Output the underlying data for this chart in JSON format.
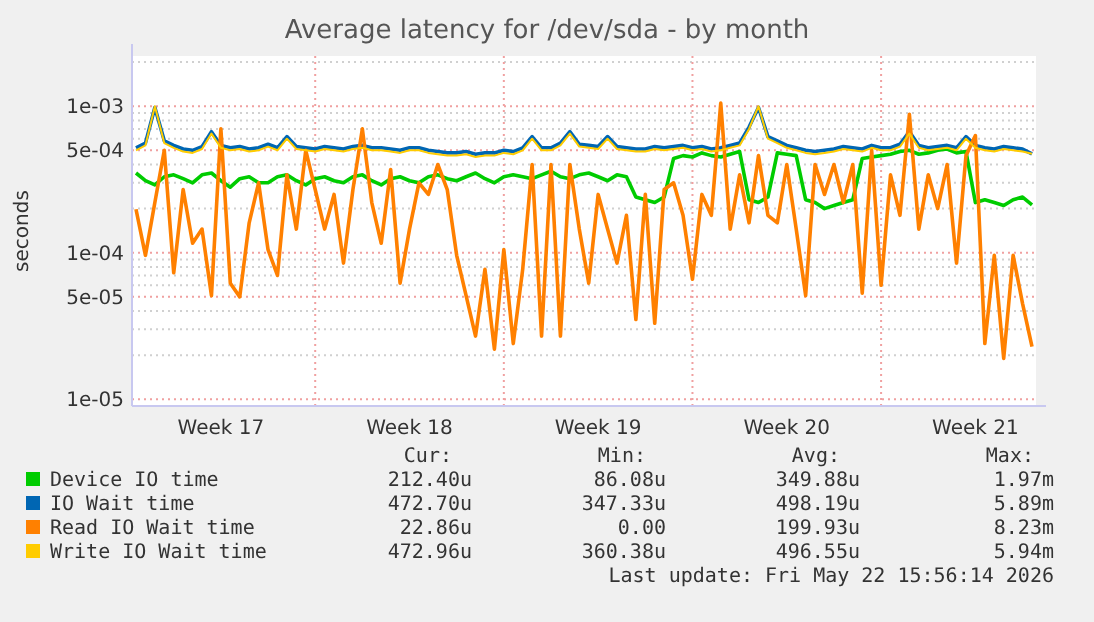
{
  "chart_data": {
    "type": "line",
    "title": "Average latency for /dev/sda - by month",
    "ylabel": "seconds",
    "log": "y",
    "grid": true,
    "legend": "bottom",
    "marker": "none",
    "line_style": "solid",
    "ylim": [
      9e-06,
      0.0022
    ],
    "yticks": [
      {
        "value": 1e-05,
        "label": "1e-05"
      },
      {
        "value": 2e-05,
        "label": null
      },
      {
        "value": 3e-05,
        "label": null
      },
      {
        "value": 4e-05,
        "label": null
      },
      {
        "value": 5e-05,
        "label": "5e-05"
      },
      {
        "value": 6e-05,
        "label": null
      },
      {
        "value": 7e-05,
        "label": null
      },
      {
        "value": 8e-05,
        "label": null
      },
      {
        "value": 9e-05,
        "label": null
      },
      {
        "value": 0.0001,
        "label": "1e-04"
      },
      {
        "value": 0.0002,
        "label": null
      },
      {
        "value": 0.0003,
        "label": null
      },
      {
        "value": 0.0004,
        "label": null
      },
      {
        "value": 0.0005,
        "label": "5e-04"
      },
      {
        "value": 0.0006,
        "label": null
      },
      {
        "value": 0.0007,
        "label": null
      },
      {
        "value": 0.0008,
        "label": null
      },
      {
        "value": 0.0009,
        "label": null
      },
      {
        "value": 0.001,
        "label": "1e-03"
      },
      {
        "value": 0.002,
        "label": null
      }
    ],
    "categories": [
      null,
      null,
      null,
      null,
      null,
      null,
      null,
      null,
      null,
      "Week 17",
      null,
      null,
      null,
      null,
      null,
      null,
      null,
      null,
      null,
      null,
      null,
      null,
      null,
      null,
      null,
      null,
      null,
      null,
      null,
      "Week 18",
      null,
      null,
      null,
      null,
      null,
      null,
      null,
      null,
      null,
      null,
      null,
      null,
      null,
      null,
      null,
      null,
      null,
      null,
      null,
      "Week 19",
      null,
      null,
      null,
      null,
      null,
      null,
      null,
      null,
      null,
      null,
      null,
      null,
      null,
      null,
      null,
      null,
      null,
      null,
      null,
      "Week 20",
      null,
      null,
      null,
      null,
      null,
      null,
      null,
      null,
      null,
      null,
      null,
      null,
      null,
      null,
      null,
      null,
      null,
      null,
      null,
      "Week 21",
      null,
      null,
      null,
      null,
      null,
      null
    ],
    "series": [
      {
        "name": "Device IO time",
        "color": "#00cc00",
        "values": [
          0.00035,
          0.00031,
          0.00029,
          0.00033,
          0.00034,
          0.00032,
          0.0003,
          0.00034,
          0.00035,
          0.00031,
          0.00028,
          0.00032,
          0.00033,
          0.0003,
          0.0003,
          0.00033,
          0.00034,
          0.00031,
          0.00029,
          0.00032,
          0.00033,
          0.00031,
          0.0003,
          0.00033,
          0.00034,
          0.00031,
          0.00029,
          0.00032,
          0.00033,
          0.00031,
          0.0003,
          0.00033,
          0.00034,
          0.00032,
          0.00031,
          0.00033,
          0.00035,
          0.00032,
          0.0003,
          0.00033,
          0.00034,
          0.00033,
          0.00032,
          0.00034,
          0.00036,
          0.00033,
          0.00032,
          0.00034,
          0.00035,
          0.00033,
          0.00031,
          0.00034,
          0.00033,
          0.00024,
          0.00023,
          0.00022,
          0.00024,
          0.00044,
          0.00046,
          0.00045,
          0.00048,
          0.00046,
          0.00045,
          0.00047,
          0.00049,
          0.00023,
          0.00022,
          0.00024,
          0.00048,
          0.00047,
          0.00046,
          0.00023,
          0.00022,
          0.0002,
          0.00021,
          0.00022,
          0.00023,
          0.00044,
          0.00045,
          0.00046,
          0.00047,
          0.00049,
          0.0005,
          0.00047,
          0.00048,
          0.0005,
          0.00051,
          0.00048,
          0.00049,
          0.00022,
          0.00023,
          0.00022,
          0.00021,
          0.00023,
          0.00024,
          0.0002124
        ]
      },
      {
        "name": "IO Wait time",
        "color": "#0066b3",
        "values": [
          0.00052,
          0.00056,
          0.00098,
          0.00058,
          0.00054,
          0.00051,
          0.0005,
          0.00053,
          0.00067,
          0.00054,
          0.00052,
          0.00053,
          0.00051,
          0.00052,
          0.00055,
          0.00052,
          0.00062,
          0.00053,
          0.00052,
          0.00051,
          0.00053,
          0.00052,
          0.00051,
          0.00053,
          0.00054,
          0.00052,
          0.00052,
          0.00051,
          0.0005,
          0.00052,
          0.00052,
          0.0005,
          0.00049,
          0.00048,
          0.00048,
          0.00049,
          0.00047,
          0.00048,
          0.00048,
          0.0005,
          0.00049,
          0.00052,
          0.00062,
          0.00052,
          0.00052,
          0.00056,
          0.00067,
          0.00055,
          0.00054,
          0.00053,
          0.00062,
          0.00053,
          0.00052,
          0.00051,
          0.00051,
          0.00053,
          0.00052,
          0.00053,
          0.00054,
          0.00052,
          0.00053,
          0.00051,
          0.00052,
          0.00054,
          0.00056,
          0.00072,
          0.00098,
          0.00062,
          0.00058,
          0.00054,
          0.00052,
          0.0005,
          0.00049,
          0.0005,
          0.00051,
          0.00053,
          0.00052,
          0.00051,
          0.00054,
          0.00052,
          0.00052,
          0.00055,
          0.00067,
          0.00054,
          0.00052,
          0.00053,
          0.00054,
          0.00052,
          0.00062,
          0.00054,
          0.00052,
          0.00051,
          0.00053,
          0.00052,
          0.00051,
          0.0004727
        ]
      },
      {
        "name": "Read IO Wait time",
        "color": "#ff8000",
        "values": [
          0.000198,
          9.6e-05,
          0.00022,
          0.0005,
          7.3e-05,
          0.00027,
          0.000116,
          0.000145,
          5.1e-05,
          0.0007,
          6.2e-05,
          5e-05,
          0.00016,
          0.0003,
          0.000105,
          7e-05,
          0.00034,
          0.000145,
          0.0005,
          0.00027,
          0.000145,
          0.00025,
          8.5e-05,
          0.00027,
          0.0007,
          0.00022,
          0.000116,
          0.00037,
          6.2e-05,
          0.000145,
          0.0003,
          0.00025,
          0.0004,
          0.00027,
          9.6e-05,
          5.1e-05,
          2.7e-05,
          7.7e-05,
          2.2e-05,
          0.000105,
          2.4e-05,
          7.7e-05,
          0.0004,
          2.7e-05,
          0.0004,
          2.7e-05,
          0.0004,
          0.000145,
          6.2e-05,
          0.00025,
          0.000145,
          8.5e-05,
          0.00018,
          3.5e-05,
          0.00025,
          3.3e-05,
          0.00027,
          0.0003,
          0.00018,
          6.6e-05,
          0.00025,
          0.00018,
          0.00105,
          0.000145,
          0.00034,
          0.00016,
          0.00046,
          0.00018,
          0.00016,
          0.0004,
          0.000145,
          5.1e-05,
          0.0004,
          0.00025,
          0.0004,
          0.00022,
          0.0004,
          5.3e-05,
          0.0005,
          6e-05,
          0.00034,
          0.00018,
          0.00088,
          0.000145,
          0.00034,
          0.0002,
          0.0004,
          8.5e-05,
          0.00046,
          0.00063,
          2.4e-05,
          9.6e-05,
          1.9e-05,
          9.6e-05,
          4.5e-05,
          2.286e-05
        ]
      },
      {
        "name": "Write IO Wait time",
        "color": "#ffcc00",
        "values": [
          0.0005,
          0.00054,
          0.001,
          0.00056,
          0.00052,
          0.00049,
          0.00048,
          0.00051,
          0.00065,
          0.00052,
          0.0005,
          0.00051,
          0.00049,
          0.0005,
          0.00053,
          0.0005,
          0.0006,
          0.00051,
          0.0005,
          0.00049,
          0.00051,
          0.0005,
          0.00049,
          0.00051,
          0.00052,
          0.0005,
          0.0005,
          0.00049,
          0.00048,
          0.0005,
          0.0005,
          0.00048,
          0.00047,
          0.00046,
          0.00046,
          0.00047,
          0.00045,
          0.00046,
          0.00046,
          0.00048,
          0.00047,
          0.0005,
          0.0006,
          0.0005,
          0.0005,
          0.00054,
          0.00065,
          0.00053,
          0.00052,
          0.00051,
          0.0006,
          0.00051,
          0.0005,
          0.00049,
          0.00049,
          0.00051,
          0.0005,
          0.00051,
          0.00052,
          0.0005,
          0.00051,
          0.00049,
          0.0005,
          0.00052,
          0.00054,
          0.0007,
          0.001,
          0.0006,
          0.00056,
          0.00052,
          0.0005,
          0.00048,
          0.00047,
          0.00048,
          0.00049,
          0.00051,
          0.0005,
          0.00049,
          0.00052,
          0.0005,
          0.0005,
          0.00053,
          0.00065,
          0.00052,
          0.0005,
          0.00051,
          0.00052,
          0.0005,
          0.0006,
          0.00052,
          0.0005,
          0.00049,
          0.00051,
          0.0005,
          0.00049,
          0.00047296
        ]
      }
    ],
    "annotations": [
      "Cur:",
      "Min:",
      "Avg:",
      "Max:",
      "212.40u",
      "86.08u",
      "349.88u",
      "1.97m",
      "472.70u",
      "347.33u",
      "498.19u",
      "5.89m",
      "22.86u",
      "0.00",
      "199.93u",
      "8.23m",
      "472.96u",
      "360.38u",
      "496.55u",
      "5.94m",
      "Last update: Fri May 22 15:56:14 2026"
    ]
  }
}
